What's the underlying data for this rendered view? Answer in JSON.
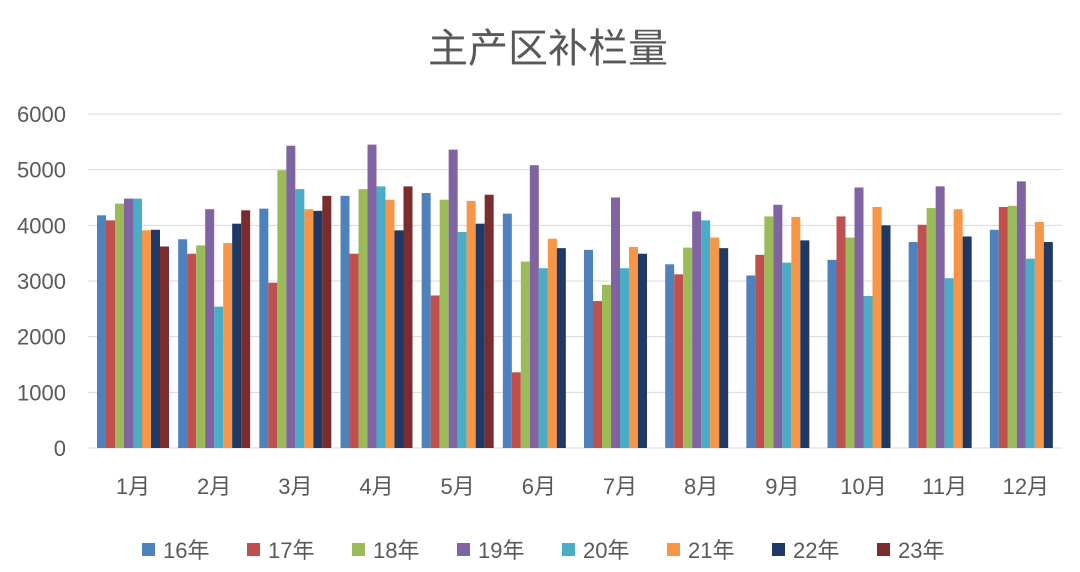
{
  "chart_data": {
    "type": "bar",
    "title": "主产区补栏量",
    "xlabel": "",
    "ylabel": "",
    "ylim": [
      0,
      6000
    ],
    "yticks": [
      0,
      1000,
      2000,
      3000,
      4000,
      5000,
      6000
    ],
    "grid": true,
    "legend_position": "bottom",
    "categories": [
      "1月",
      "2月",
      "3月",
      "4月",
      "5月",
      "6月",
      "7月",
      "8月",
      "9月",
      "10月",
      "11月",
      "12月"
    ],
    "series": [
      {
        "name": "16年",
        "color": "#4f81bd",
        "values": [
          4180,
          3750,
          4300,
          4530,
          4580,
          4210,
          3560,
          3300,
          3100,
          3380,
          3700,
          3920
        ]
      },
      {
        "name": "17年",
        "color": "#c0504d",
        "values": [
          4090,
          3490,
          2970,
          3490,
          2740,
          1360,
          2640,
          3120,
          3470,
          4160,
          4010,
          4330
        ]
      },
      {
        "name": "18年",
        "color": "#9bbb59",
        "values": [
          4390,
          3640,
          4990,
          4650,
          4460,
          3350,
          2930,
          3600,
          4160,
          3780,
          4310,
          4350
        ]
      },
      {
        "name": "19年",
        "color": "#8064a2",
        "values": [
          4480,
          4290,
          5430,
          5450,
          5360,
          5080,
          4500,
          4250,
          4370,
          4680,
          4700,
          4790
        ]
      },
      {
        "name": "20年",
        "color": "#4bacc6",
        "values": [
          4480,
          2540,
          4650,
          4700,
          3880,
          3230,
          3230,
          4090,
          3330,
          2730,
          3050,
          3400
        ]
      },
      {
        "name": "21年",
        "color": "#f79646",
        "values": [
          3910,
          3680,
          4290,
          4460,
          4440,
          3760,
          3610,
          3780,
          4150,
          4330,
          4290,
          4060
        ]
      },
      {
        "name": "22年",
        "color": "#1f3864",
        "values": [
          3920,
          4030,
          4260,
          3910,
          4030,
          3590,
          3490,
          3590,
          3730,
          4000,
          3800,
          3700
        ]
      },
      {
        "name": "23年",
        "color": "#7b2c2c",
        "values": [
          3620,
          4270,
          4530,
          4700,
          4550,
          null,
          null,
          null,
          null,
          null,
          null,
          null
        ]
      }
    ]
  }
}
